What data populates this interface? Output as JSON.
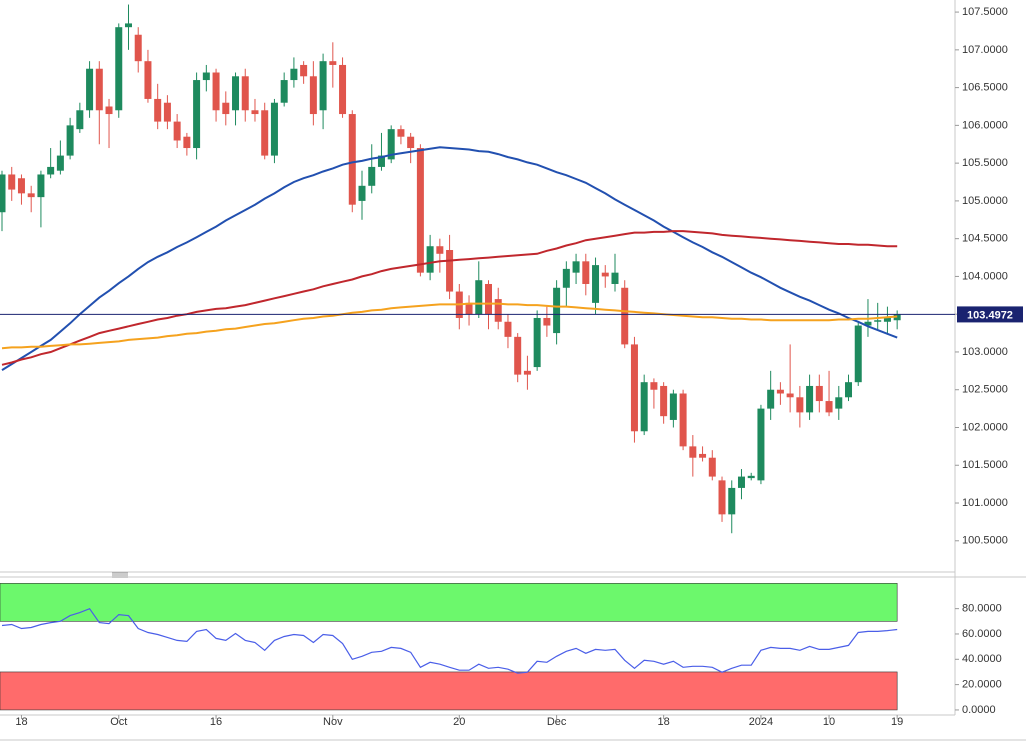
{
  "chart_data": {
    "type": "candlestick",
    "categories": [
      null,
      null,
      "18",
      null,
      null,
      null,
      null,
      null,
      null,
      null,
      null,
      null,
      "Oct",
      null,
      null,
      null,
      null,
      null,
      null,
      null,
      null,
      null,
      "16",
      null,
      null,
      null,
      null,
      null,
      null,
      null,
      null,
      null,
      null,
      null,
      "Nov",
      null,
      null,
      null,
      null,
      null,
      null,
      null,
      null,
      null,
      null,
      null,
      null,
      "20",
      null,
      null,
      null,
      null,
      null,
      null,
      null,
      null,
      null,
      "Dec",
      null,
      null,
      null,
      null,
      null,
      null,
      null,
      null,
      null,
      null,
      "18",
      null,
      null,
      null,
      null,
      null,
      null,
      null,
      null,
      null,
      "2024",
      null,
      null,
      null,
      null,
      null,
      null,
      "10",
      null,
      null,
      null,
      null,
      null,
      null,
      "19"
    ],
    "open": [
      104.85,
      105.35,
      105.3,
      105.1,
      105.05,
      105.35,
      105.4,
      105.6,
      105.95,
      106.2,
      106.75,
      106.25,
      106.2,
      107.3,
      107.2,
      106.85,
      106.35,
      106.3,
      106.05,
      105.85,
      105.7,
      106.6,
      106.7,
      106.3,
      106.2,
      106.65,
      106.2,
      106.2,
      105.6,
      106.3,
      106.6,
      106.8,
      106.65,
      106.2,
      106.85,
      106.8,
      106.15,
      105.0,
      105.2,
      105.45,
      105.55,
      105.95,
      105.85,
      105.7,
      104.05,
      104.4,
      104.35,
      103.8,
      103.65,
      103.5,
      103.9,
      103.7,
      103.4,
      103.2,
      102.75,
      102.8,
      103.45,
      103.25,
      103.85,
      104.05,
      104.2,
      103.65,
      104.05,
      103.9,
      103.85,
      103.1,
      101.95,
      102.6,
      102.55,
      102.1,
      102.45,
      101.75,
      101.65,
      101.6,
      101.3,
      100.85,
      101.2,
      101.33,
      101.3,
      102.25,
      102.5,
      102.45,
      102.4,
      102.2,
      102.55,
      102.35,
      102.25,
      102.4,
      102.6,
      103.35,
      103.4,
      103.4,
      103.42
    ],
    "high": [
      105.4,
      105.45,
      105.35,
      105.2,
      105.4,
      105.7,
      105.8,
      106.1,
      106.3,
      106.85,
      106.85,
      106.35,
      107.35,
      107.6,
      107.3,
      107.0,
      106.55,
      106.4,
      106.15,
      105.9,
      106.7,
      106.8,
      106.75,
      106.45,
      106.7,
      106.75,
      106.35,
      106.3,
      106.35,
      106.7,
      106.9,
      106.85,
      106.85,
      106.95,
      107.1,
      106.9,
      106.2,
      105.4,
      105.75,
      105.9,
      106.0,
      106.0,
      105.9,
      105.75,
      104.55,
      104.5,
      104.55,
      103.9,
      103.75,
      104.2,
      103.95,
      103.85,
      103.5,
      103.25,
      102.95,
      103.55,
      103.6,
      103.95,
      104.2,
      104.3,
      104.3,
      104.25,
      104.15,
      104.3,
      103.95,
      103.2,
      102.7,
      102.65,
      102.6,
      102.5,
      102.5,
      101.9,
      101.75,
      101.7,
      101.35,
      101.3,
      101.45,
      101.4,
      102.3,
      102.75,
      102.6,
      103.1,
      102.55,
      102.7,
      102.7,
      102.75,
      102.55,
      102.7,
      103.4,
      103.7,
      103.65,
      103.6,
      103.55
    ],
    "low": [
      104.6,
      105.0,
      104.95,
      104.85,
      104.65,
      105.3,
      105.35,
      105.55,
      105.9,
      106.1,
      105.75,
      105.7,
      106.1,
      107.0,
      106.7,
      106.3,
      105.95,
      105.95,
      105.7,
      105.6,
      105.55,
      106.45,
      106.05,
      106.0,
      106.0,
      106.05,
      106.05,
      105.55,
      105.5,
      106.25,
      106.5,
      106.55,
      106.0,
      105.95,
      106.5,
      106.1,
      104.85,
      104.75,
      105.1,
      105.4,
      105.5,
      105.75,
      105.5,
      104.0,
      103.95,
      104.05,
      103.7,
      103.3,
      103.35,
      103.45,
      103.3,
      103.3,
      103.05,
      102.6,
      102.5,
      102.75,
      103.2,
      103.1,
      103.6,
      103.9,
      103.75,
      103.5,
      103.85,
      103.8,
      103.05,
      101.8,
      101.9,
      102.25,
      102.05,
      102.0,
      101.7,
      101.35,
      101.55,
      101.3,
      100.75,
      100.6,
      101.05,
      101.3,
      101.25,
      102.1,
      102.3,
      102.2,
      102.0,
      102.1,
      102.2,
      102.15,
      102.1,
      102.35,
      102.55,
      103.2,
      103.3,
      103.25,
      103.3
    ],
    "close": [
      105.35,
      105.15,
      105.1,
      105.05,
      105.35,
      105.45,
      105.6,
      106.0,
      106.2,
      106.75,
      106.2,
      106.15,
      107.3,
      107.35,
      106.85,
      106.35,
      106.05,
      106.05,
      105.8,
      105.7,
      106.6,
      106.7,
      106.2,
      106.15,
      106.65,
      106.2,
      106.15,
      105.6,
      106.3,
      106.6,
      106.75,
      106.65,
      106.15,
      106.85,
      106.8,
      106.15,
      104.95,
      105.2,
      105.45,
      105.6,
      105.95,
      105.85,
      105.7,
      104.05,
      104.4,
      104.3,
      103.8,
      103.45,
      103.5,
      103.95,
      103.5,
      103.4,
      103.2,
      102.7,
      102.7,
      103.45,
      103.35,
      103.85,
      104.1,
      104.2,
      103.9,
      104.15,
      104.0,
      104.05,
      103.1,
      101.95,
      102.6,
      102.5,
      102.15,
      102.45,
      101.75,
      101.6,
      101.6,
      101.35,
      100.85,
      101.2,
      101.35,
      101.36,
      102.25,
      102.5,
      102.45,
      102.4,
      102.2,
      102.55,
      102.35,
      102.2,
      102.4,
      102.6,
      103.35,
      103.4,
      103.42,
      103.45,
      103.5
    ],
    "up_color": "#1e8a5e",
    "down_color": "#e0554c",
    "lines": [
      {
        "color": "#2250b0",
        "values": [
          102.76,
          102.84,
          102.92,
          103.0,
          103.08,
          103.16,
          103.27,
          103.38,
          103.5,
          103.61,
          103.72,
          103.81,
          103.91,
          104.0,
          104.1,
          104.19,
          104.26,
          104.32,
          104.39,
          104.45,
          104.52,
          104.59,
          104.66,
          104.74,
          104.81,
          104.88,
          104.95,
          105.03,
          105.1,
          105.18,
          105.25,
          105.3,
          105.34,
          105.39,
          105.43,
          105.48,
          105.51,
          105.53,
          105.56,
          105.58,
          105.61,
          105.63,
          105.65,
          105.67,
          105.69,
          105.71,
          105.7,
          105.69,
          105.68,
          105.66,
          105.65,
          105.62,
          105.58,
          105.55,
          105.51,
          105.48,
          105.43,
          105.38,
          105.34,
          105.29,
          105.24,
          105.17,
          105.1,
          105.02,
          104.95,
          104.88,
          104.81,
          104.74,
          104.66,
          104.59,
          104.52,
          104.45,
          104.39,
          104.32,
          104.26,
          104.19,
          104.12,
          104.05,
          103.99,
          103.92,
          103.85,
          103.79,
          103.73,
          103.68,
          103.62,
          103.56,
          103.51,
          103.45,
          103.4,
          103.34,
          103.29,
          103.24,
          103.19
        ]
      },
      {
        "color": "#c0272d",
        "values": [
          102.83,
          102.86,
          102.9,
          102.93,
          102.97,
          103.0,
          103.05,
          103.1,
          103.15,
          103.2,
          103.25,
          103.28,
          103.31,
          103.34,
          103.37,
          103.4,
          103.43,
          103.45,
          103.48,
          103.5,
          103.53,
          103.55,
          103.57,
          103.58,
          103.6,
          103.62,
          103.65,
          103.68,
          103.71,
          103.74,
          103.77,
          103.8,
          103.83,
          103.87,
          103.9,
          103.93,
          103.96,
          104.0,
          104.03,
          104.07,
          104.1,
          104.12,
          104.14,
          104.16,
          104.18,
          104.2,
          104.21,
          104.22,
          104.23,
          104.24,
          104.25,
          104.26,
          104.27,
          104.28,
          104.29,
          104.3,
          104.34,
          104.37,
          104.41,
          104.44,
          104.48,
          104.5,
          104.52,
          104.54,
          104.56,
          104.58,
          104.58,
          104.59,
          104.59,
          104.6,
          104.6,
          104.59,
          104.58,
          104.57,
          104.55,
          104.54,
          104.53,
          104.52,
          104.51,
          104.5,
          104.49,
          104.48,
          104.47,
          104.46,
          104.45,
          104.44,
          104.43,
          104.43,
          104.42,
          104.42,
          104.41,
          104.4,
          104.4
        ]
      },
      {
        "color": "#f5a21e",
        "values": [
          103.05,
          103.06,
          103.06,
          103.07,
          103.07,
          103.08,
          103.09,
          103.1,
          103.1,
          103.11,
          103.12,
          103.13,
          103.14,
          103.16,
          103.17,
          103.18,
          103.19,
          103.21,
          103.22,
          103.24,
          103.25,
          103.27,
          103.28,
          103.3,
          103.31,
          103.33,
          103.35,
          103.37,
          103.38,
          103.4,
          103.42,
          103.44,
          103.45,
          103.47,
          103.48,
          103.5,
          103.52,
          103.53,
          103.55,
          103.56,
          103.58,
          103.59,
          103.6,
          103.61,
          103.62,
          103.63,
          103.63,
          103.63,
          103.64,
          103.64,
          103.64,
          103.64,
          103.63,
          103.63,
          103.62,
          103.62,
          103.61,
          103.6,
          103.6,
          103.59,
          103.58,
          103.57,
          103.56,
          103.55,
          103.54,
          103.53,
          103.52,
          103.51,
          103.5,
          103.49,
          103.48,
          103.47,
          103.46,
          103.46,
          103.45,
          103.44,
          103.44,
          103.43,
          103.43,
          103.42,
          103.42,
          103.42,
          103.42,
          103.42,
          103.42,
          103.42,
          103.43,
          103.43,
          103.44,
          103.44,
          103.45,
          103.46,
          103.47
        ]
      }
    ],
    "last_price": 103.4972,
    "ylim": [
      100.1,
      107.66
    ],
    "yticks": [
      {
        "value": 100.5,
        "label": "100.5000"
      },
      {
        "value": 101,
        "label": "101.0000"
      },
      {
        "value": 101.5,
        "label": "101.5000"
      },
      {
        "value": 102,
        "label": "102.0000"
      },
      {
        "value": 102.5,
        "label": "102.5000"
      },
      {
        "value": 103,
        "label": "103.0000"
      },
      {
        "value": 103.5,
        "label": "103.5000"
      },
      {
        "value": 104,
        "label": "104.0000"
      },
      {
        "value": 104.5,
        "label": "104.5000"
      },
      {
        "value": 105,
        "label": "105.0000"
      },
      {
        "value": 105.5,
        "label": "105.5000"
      },
      {
        "value": 106,
        "label": "106.0000"
      },
      {
        "value": 106.5,
        "label": "106.5000"
      },
      {
        "value": 107,
        "label": "107.0000"
      },
      {
        "value": 107.5,
        "label": "107.5000"
      }
    ],
    "rsi": {
      "color": "#4a5ee8",
      "values": [
        66.7,
        67.5,
        64.3,
        65.1,
        67.5,
        69,
        70,
        74.5,
        76.9,
        80,
        69,
        68.2,
        75.3,
        74.5,
        64.3,
        61.2,
        59.6,
        57.3,
        54.9,
        54.1,
        62,
        63.5,
        56.5,
        54.9,
        60.4,
        54.9,
        53.3,
        47.1,
        54.9,
        58,
        59.6,
        58.8,
        53.3,
        59.6,
        58.8,
        52.5,
        40,
        42.4,
        45.5,
        46.3,
        49.4,
        48.6,
        45.5,
        33.7,
        37.6,
        36.1,
        33.7,
        31.4,
        31.4,
        36.1,
        32.9,
        33.7,
        32.2,
        29,
        29.8,
        38.4,
        37.6,
        42.4,
        46.3,
        48.6,
        44.7,
        47.8,
        47.1,
        47.8,
        39.2,
        32.9,
        39.2,
        38.4,
        36.1,
        38.4,
        33.7,
        34.5,
        34.5,
        33.7,
        29.8,
        32.9,
        35.3,
        35.3,
        47.1,
        49.4,
        48.6,
        48.6,
        47.1,
        50.2,
        47.8,
        47.8,
        49.4,
        51,
        61.2,
        62,
        62,
        62.7,
        63.5
      ],
      "ylim": [
        -4,
        105
      ],
      "yticks": [
        {
          "value": 0,
          "label": "0.0000"
        },
        {
          "value": 20,
          "label": "20.0000"
        },
        {
          "value": 40,
          "label": "40.0000"
        },
        {
          "value": 60,
          "label": "60.0000"
        },
        {
          "value": 80,
          "label": "80.0000"
        }
      ],
      "bands": [
        {
          "from": 70,
          "to": 100,
          "color": "#6cf86c"
        },
        {
          "from": 0,
          "to": 30,
          "color": "#ff6b6b"
        }
      ]
    }
  }
}
